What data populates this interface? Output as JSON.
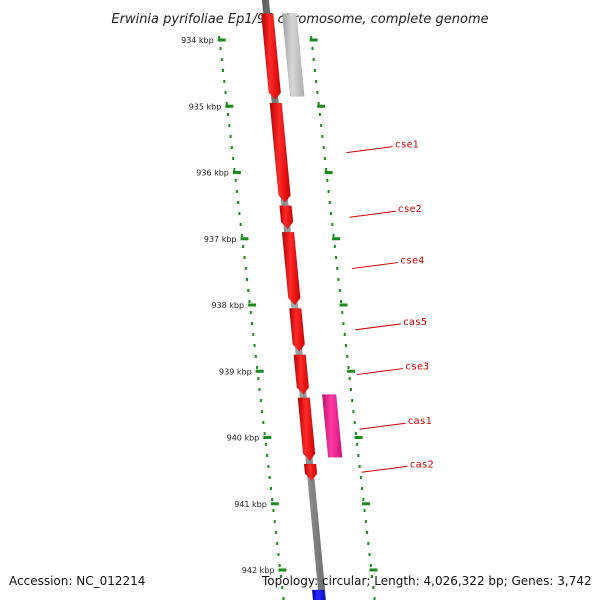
{
  "title": "Erwinia pyrifoliae Ep1/96 chromosome, complete genome",
  "footer": {
    "accession": "Accession: NC_012214",
    "summary": "Topology: circular; Length: 4,026,322 bp; Genes: 3,742"
  },
  "colors": {
    "gene_forward": "#ff0000",
    "gene_other_strand": "#bdbdbd",
    "gene_pink": "#ee1a8c",
    "gene_blue": "#0000dd",
    "backbone": "#808080",
    "tick_dots": "#1a8a1a",
    "label": "#cc0000"
  },
  "scale": {
    "unit": "kbp",
    "ticks": [
      {
        "kbp": 934,
        "label": "934 kbp"
      },
      {
        "kbp": 935,
        "label": "935 kbp"
      },
      {
        "kbp": 936,
        "label": "936 kbp"
      },
      {
        "kbp": 937,
        "label": "937 kbp"
      },
      {
        "kbp": 938,
        "label": "938 kbp"
      },
      {
        "kbp": 939,
        "label": "939 kbp"
      },
      {
        "kbp": 940,
        "label": "940 kbp"
      },
      {
        "kbp": 941,
        "label": "941 kbp"
      },
      {
        "kbp": 942,
        "label": "942 kbp"
      }
    ]
  },
  "genes": [
    {
      "label": "",
      "start_kbp": 933.6,
      "end_kbp": 934.9,
      "track": "forward"
    },
    {
      "label": "",
      "start_kbp": 933.6,
      "end_kbp": 934.85,
      "track": "other"
    },
    {
      "label": "cse1",
      "start_kbp": 934.95,
      "end_kbp": 936.45,
      "track": "forward"
    },
    {
      "label": "cse2",
      "start_kbp": 936.5,
      "end_kbp": 936.85,
      "track": "forward"
    },
    {
      "label": "cse4",
      "start_kbp": 936.9,
      "end_kbp": 938.0,
      "track": "forward"
    },
    {
      "label": "cas5",
      "start_kbp": 938.05,
      "end_kbp": 938.7,
      "track": "forward"
    },
    {
      "label": "cse3",
      "start_kbp": 938.75,
      "end_kbp": 939.35,
      "track": "forward"
    },
    {
      "label": "cas1",
      "start_kbp": 939.4,
      "end_kbp": 940.35,
      "track": "forward"
    },
    {
      "label": "",
      "start_kbp": 939.35,
      "end_kbp": 940.3,
      "track": "pink"
    },
    {
      "label": "cas2",
      "start_kbp": 940.4,
      "end_kbp": 940.65,
      "track": "forward"
    },
    {
      "label": "",
      "start_kbp": 942.3,
      "end_kbp": 942.6,
      "track": "blue"
    }
  ]
}
